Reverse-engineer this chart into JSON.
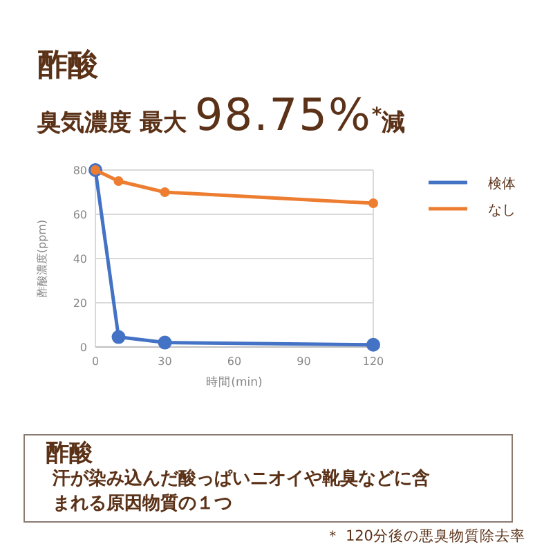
{
  "chart_data": {
    "type": "line",
    "title": "酢酸",
    "subtitle": "臭気濃度 最大 98.75%$^{*}$減",
    "xlabel": "時間(min)",
    "ylabel": "酢酸濃度(ppm)",
    "x": [
      0,
      10,
      30,
      120
    ],
    "series": [
      {
        "name": "検体",
        "color": "#4472c4",
        "values": [
          80,
          4.5,
          2,
          1
        ]
      },
      {
        "name": "なし",
        "color": "#ed7d31",
        "values": [
          80,
          75,
          70,
          65
        ]
      }
    ],
    "xlim": [
      0,
      120
    ],
    "xticks": [
      0,
      30,
      60,
      90,
      120
    ],
    "ylim": [
      0,
      80
    ],
    "yticks": [
      0,
      20,
      40,
      60,
      80
    ],
    "grid": "y",
    "legend": "right",
    "marker": "circle",
    "line_style": "solid",
    "annotations": [
      "酢酸",
      "汗が染み込んだ酸っぱいニオイや靴臭などに含まれる原因物質の１つ",
      "＊ 120分後の悪臭物質除去率"
    ]
  }
}
